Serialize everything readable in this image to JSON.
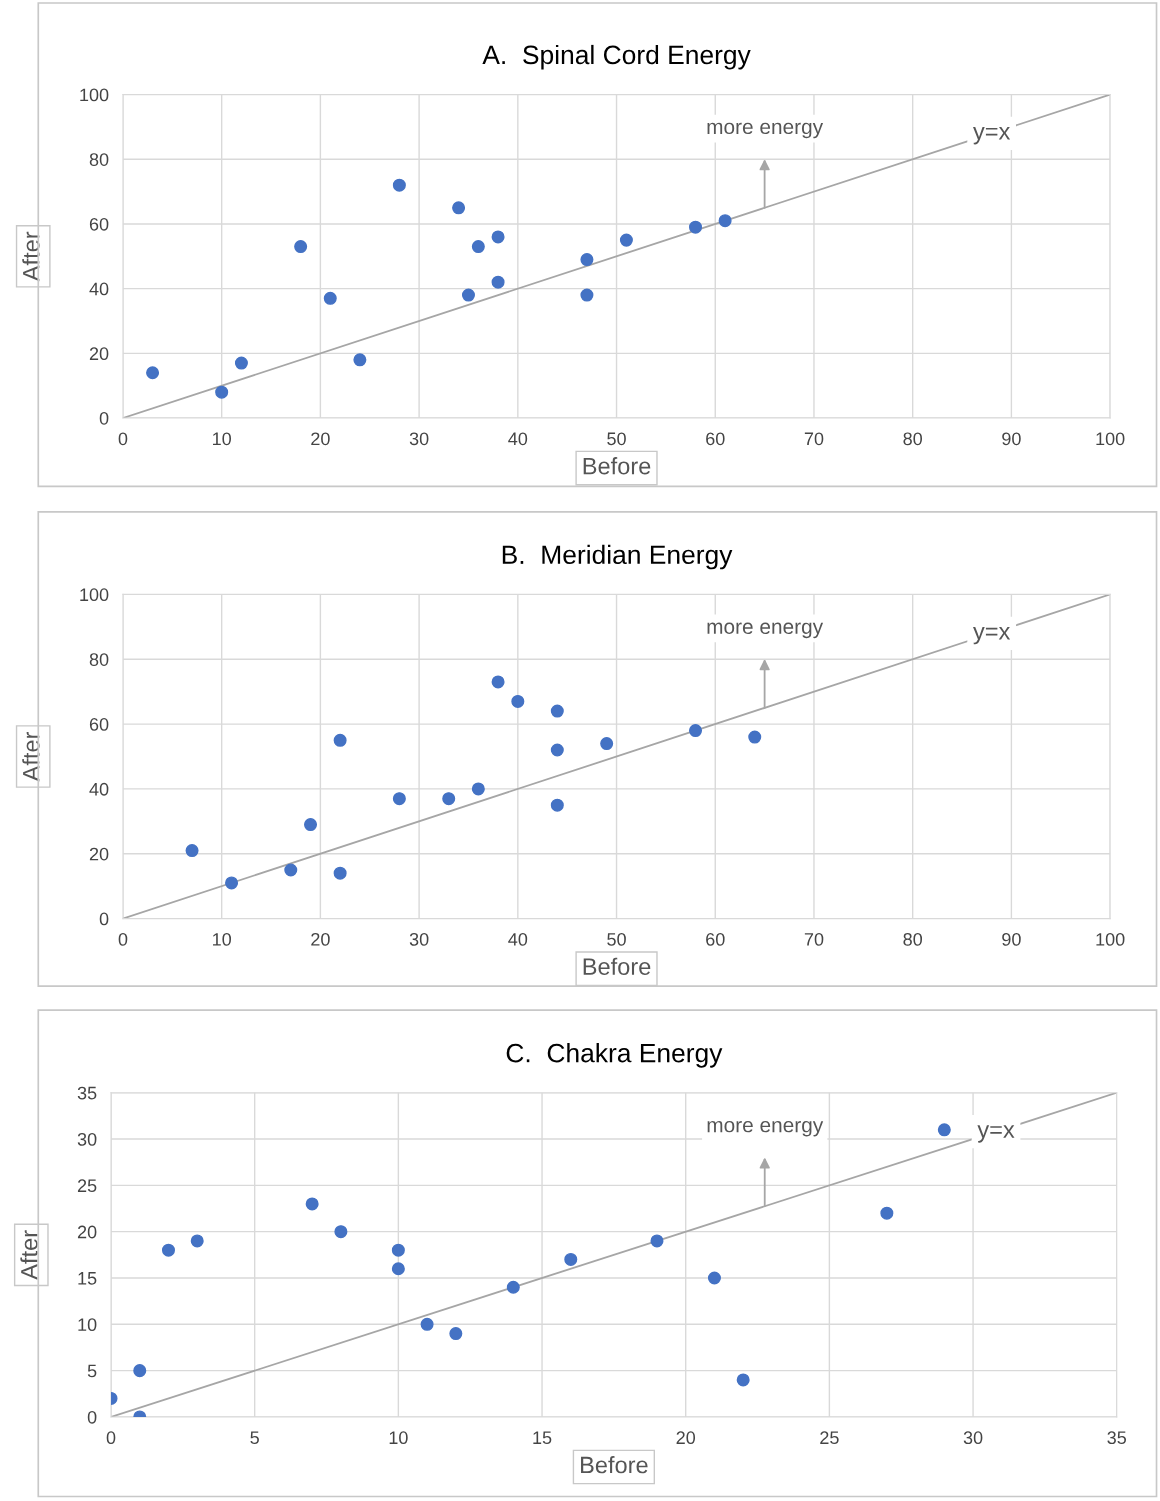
{
  "chart_data": [
    {
      "type": "scatter",
      "title": "A.  Spinal Cord Energy",
      "xlabel": "Before",
      "ylabel": "After",
      "xlim": [
        0,
        100
      ],
      "ylim": [
        0,
        100
      ],
      "xticks": [
        0,
        10,
        20,
        30,
        40,
        50,
        60,
        70,
        80,
        90,
        100
      ],
      "yticks": [
        0,
        20,
        40,
        60,
        80,
        100
      ],
      "grid": true,
      "legend": false,
      "annotations": [
        "more energy"
      ],
      "series": [
        {
          "marker": "circle",
          "color": "#4472c4",
          "x": [
            3,
            10,
            12,
            18,
            21,
            24,
            28,
            34,
            35,
            36,
            38,
            38,
            47,
            47,
            51,
            58,
            61
          ],
          "values": [
            14,
            8,
            17,
            53,
            37,
            18,
            72,
            65,
            38,
            53,
            56,
            42,
            49,
            38,
            55,
            59,
            61
          ]
        },
        {
          "type": "line",
          "name": "y=x",
          "color": "#a6a6a6",
          "x": [
            0,
            100
          ],
          "values": [
            0,
            100
          ]
        }
      ]
    },
    {
      "type": "scatter",
      "title": "B.  Meridian Energy",
      "xlabel": "Before",
      "ylabel": "After",
      "xlim": [
        0,
        100
      ],
      "ylim": [
        0,
        100
      ],
      "xticks": [
        0,
        10,
        20,
        30,
        40,
        50,
        60,
        70,
        80,
        90,
        100
      ],
      "yticks": [
        0,
        20,
        40,
        60,
        80,
        100
      ],
      "grid": true,
      "legend": false,
      "annotations": [
        "more energy"
      ],
      "series": [
        {
          "marker": "circle",
          "color": "#4472c4",
          "x": [
            7,
            11,
            17,
            19,
            22,
            22,
            28,
            33,
            36,
            38,
            40,
            44,
            44,
            44,
            49,
            58,
            64
          ],
          "values": [
            21,
            11,
            15,
            29,
            55,
            14,
            37,
            37,
            40,
            73,
            67,
            64,
            52,
            35,
            54,
            58,
            56
          ]
        },
        {
          "type": "line",
          "name": "y=x",
          "color": "#a6a6a6",
          "x": [
            0,
            100
          ],
          "values": [
            0,
            100
          ]
        }
      ]
    },
    {
      "type": "scatter",
      "title": "C.  Chakra Energy",
      "xlabel": "Before",
      "ylabel": "After",
      "xlim": [
        0,
        35
      ],
      "ylim": [
        0,
        35
      ],
      "xticks": [
        0,
        5,
        10,
        15,
        20,
        25,
        30,
        35
      ],
      "yticks": [
        0,
        5,
        10,
        15,
        20,
        25,
        30,
        35
      ],
      "grid": true,
      "legend": false,
      "annotations": [
        "more energy"
      ],
      "series": [
        {
          "marker": "circle",
          "color": "#4472c4",
          "x": [
            0,
            1,
            1,
            2,
            3,
            7,
            8,
            10,
            10,
            11,
            12,
            14,
            16,
            19,
            21,
            22,
            27,
            29
          ],
          "values": [
            2,
            5,
            0,
            18,
            19,
            23,
            20,
            18,
            16,
            10,
            9,
            14,
            17,
            19,
            15,
            4,
            22,
            31
          ]
        },
        {
          "type": "line",
          "name": "y=x",
          "color": "#a6a6a6",
          "x": [
            0,
            35
          ],
          "values": [
            0,
            35
          ]
        }
      ]
    }
  ]
}
